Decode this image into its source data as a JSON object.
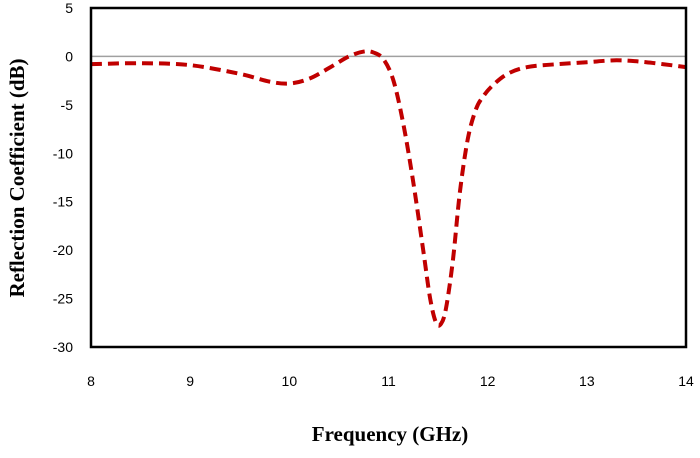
{
  "chart_data": {
    "type": "line",
    "title": "",
    "xlabel": "Frequency (GHz)",
    "ylabel": "Reflection Coefficient (dB)",
    "xlim": [
      8,
      14
    ],
    "ylim": [
      -30,
      5
    ],
    "xticks": [
      8,
      9,
      10,
      11,
      12,
      13,
      14
    ],
    "yticks": [
      5,
      0,
      -5,
      -10,
      -15,
      -20,
      -25,
      -30
    ],
    "grid": false,
    "legend": "none",
    "series": [
      {
        "color": "#c00000",
        "style": "dashed",
        "x": [
          8,
          8.5,
          9,
          9.5,
          9.8,
          10,
          10.2,
          10.4,
          10.6,
          10.75,
          10.85,
          10.95,
          11.05,
          11.15,
          11.25,
          11.35,
          11.42,
          11.48,
          11.53,
          11.58,
          11.65,
          11.72,
          11.8,
          11.88,
          11.95,
          12.05,
          12.2,
          12.4,
          12.7,
          13,
          13.3,
          13.6,
          14
        ],
        "y": [
          -0.8,
          -0.7,
          -0.9,
          -1.8,
          -2.6,
          -2.8,
          -2.3,
          -1.2,
          0.0,
          0.5,
          0.4,
          -0.3,
          -2.5,
          -7,
          -13,
          -20,
          -25,
          -27.5,
          -27.6,
          -26,
          -21,
          -14,
          -8.5,
          -5.5,
          -4.2,
          -3.0,
          -1.8,
          -1.1,
          -0.8,
          -0.6,
          -0.4,
          -0.6,
          -1.1
        ]
      }
    ],
    "reference_line": {
      "y": 0,
      "color": "#a0a0a0"
    }
  }
}
